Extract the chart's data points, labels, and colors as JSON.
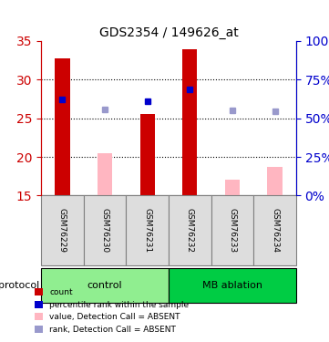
{
  "title": "GDS2354 / 149626_at",
  "samples": [
    "GSM76229",
    "GSM76230",
    "GSM76231",
    "GSM76232",
    "GSM76233",
    "GSM76234"
  ],
  "groups": [
    "control",
    "control",
    "control",
    "MB ablation",
    "MB ablation",
    "MB ablation"
  ],
  "group_colors": {
    "control": "#90EE90",
    "MB ablation": "#00CC44"
  },
  "ylim_left": [
    15,
    35
  ],
  "ylim_right": [
    0,
    100
  ],
  "yticks_left": [
    15,
    20,
    25,
    30,
    35
  ],
  "yticks_right": [
    0,
    25,
    50,
    75,
    100
  ],
  "ytick_labels_right": [
    "0%",
    "25%",
    "50%",
    "75%",
    "100%"
  ],
  "red_bars": [
    32.7,
    null,
    25.6,
    33.9,
    null,
    null
  ],
  "pink_bars": [
    null,
    20.5,
    null,
    null,
    17.0,
    18.7
  ],
  "blue_squares": [
    27.5,
    null,
    27.2,
    28.8,
    null,
    null
  ],
  "lavender_squares": [
    null,
    26.2,
    null,
    null,
    26.0,
    25.9
  ],
  "bar_bottom": 15,
  "red_color": "#CC0000",
  "pink_color": "#FFB6C1",
  "blue_color": "#0000CC",
  "lavender_color": "#9999CC",
  "grid_color": "#000000",
  "left_axis_color": "#CC0000",
  "right_axis_color": "#0000CC",
  "legend_items": [
    {
      "label": "count",
      "color": "#CC0000",
      "marker": "s"
    },
    {
      "label": "percentile rank within the sample",
      "color": "#0000CC",
      "marker": "s"
    },
    {
      "label": "value, Detection Call = ABSENT",
      "color": "#FFB6C1",
      "marker": "s"
    },
    {
      "label": "rank, Detection Call = ABSENT",
      "color": "#9999CC",
      "marker": "s"
    }
  ],
  "protocol_label": "protocol",
  "figsize": [
    3.61,
    3.75
  ],
  "dpi": 100
}
